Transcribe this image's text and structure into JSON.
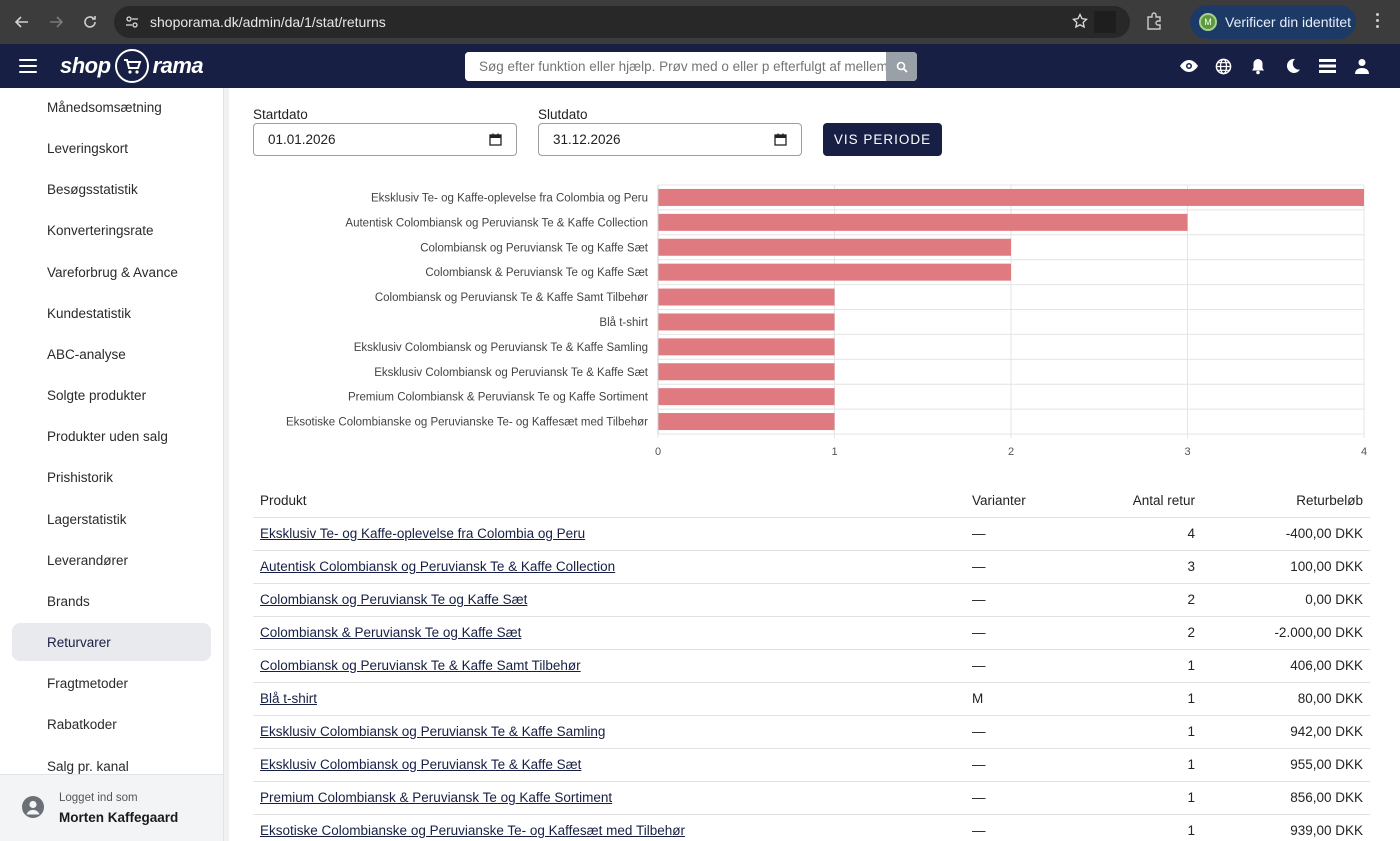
{
  "browser": {
    "url": "shoporama.dk/admin/da/1/stat/returns",
    "verify_label": "Verificer din identitet",
    "profile_initial": "M"
  },
  "header": {
    "logo_left": "shop",
    "logo_right": "rama",
    "search_placeholder": "Søg efter funktion eller hjælp. Prøv med o eller p efterfulgt af mellemrum",
    "icons": [
      "eye-icon",
      "globe-icon",
      "bell-icon",
      "moon-icon",
      "stack-icon",
      "user-icon"
    ]
  },
  "sidebar": {
    "items": [
      {
        "label": "Månedsomsætning"
      },
      {
        "label": "Leveringskort"
      },
      {
        "label": "Besøgsstatistik"
      },
      {
        "label": "Konverteringsrate"
      },
      {
        "label": "Vareforbrug & Avance"
      },
      {
        "label": "Kundestatistik"
      },
      {
        "label": "ABC-analyse"
      },
      {
        "label": "Solgte produkter"
      },
      {
        "label": "Produkter uden salg"
      },
      {
        "label": "Prishistorik"
      },
      {
        "label": "Lagerstatistik"
      },
      {
        "label": "Leverandører"
      },
      {
        "label": "Brands"
      },
      {
        "label": "Returvarer",
        "active": true
      },
      {
        "label": "Fragtmetoder"
      },
      {
        "label": "Rabatkoder"
      },
      {
        "label": "Salg pr. kanal"
      }
    ],
    "footer": {
      "logged_in_label": "Logget ind som",
      "user_name": "Morten Kaffegaard"
    }
  },
  "filters": {
    "start_label": "Startdato",
    "start_value": "01.01.2026",
    "end_label": "Slutdato",
    "end_value": "31.12.2026",
    "button_label": "VIS PERIODE"
  },
  "chart_data": {
    "type": "bar",
    "orientation": "horizontal",
    "categories": [
      "Eksklusiv Te- og Kaffe-oplevelse fra Colombia og Peru",
      "Autentisk Colombiansk og Peruviansk Te & Kaffe Collection",
      "Colombiansk og Peruviansk Te og Kaffe Sæt",
      "Colombiansk & Peruviansk Te og Kaffe Sæt",
      "Colombiansk og Peruviansk Te & Kaffe Samt Tilbehør",
      "Blå t-shirt",
      "Eksklusiv Colombiansk og Peruviansk Te & Kaffe Samling",
      "Eksklusiv Colombiansk og Peruviansk Te & Kaffe Sæt",
      "Premium Colombiansk & Peruviansk Te og Kaffe Sortiment",
      "Eksotiske Colombianske og Peruvianske Te- og Kaffesæt med Tilbehør"
    ],
    "values": [
      4,
      3,
      2,
      2,
      1,
      1,
      1,
      1,
      1,
      1
    ],
    "xlim": [
      0,
      4
    ],
    "xticks": [
      "0",
      "1",
      "2",
      "3",
      "4"
    ],
    "grid": true,
    "bar_color": "#de7a80"
  },
  "table": {
    "headers": {
      "product": "Produkt",
      "variants": "Varianter",
      "count": "Antal retur",
      "amount": "Returbeløb"
    },
    "rows": [
      {
        "product": "Eksklusiv Te- og Kaffe-oplevelse fra Colombia og Peru",
        "variants": "—",
        "count": "4",
        "amount": "-400,00 DKK"
      },
      {
        "product": "Autentisk Colombiansk og Peruviansk Te & Kaffe Collection",
        "variants": "—",
        "count": "3",
        "amount": "100,00 DKK"
      },
      {
        "product": "Colombiansk og Peruviansk Te og Kaffe Sæt",
        "variants": "—",
        "count": "2",
        "amount": "0,00 DKK"
      },
      {
        "product": "Colombiansk & Peruviansk Te og Kaffe Sæt",
        "variants": "—",
        "count": "2",
        "amount": "-2.000,00 DKK"
      },
      {
        "product": "Colombiansk og Peruviansk Te & Kaffe Samt Tilbehør",
        "variants": "—",
        "count": "1",
        "amount": "406,00 DKK"
      },
      {
        "product": "Blå t-shirt",
        "variants": "M",
        "count": "1",
        "amount": "80,00 DKK"
      },
      {
        "product": "Eksklusiv Colombiansk og Peruviansk Te & Kaffe Samling",
        "variants": "—",
        "count": "1",
        "amount": "942,00 DKK"
      },
      {
        "product": "Eksklusiv Colombiansk og Peruviansk Te & Kaffe Sæt",
        "variants": "—",
        "count": "1",
        "amount": "955,00 DKK"
      },
      {
        "product": "Premium Colombiansk & Peruviansk Te og Kaffe Sortiment",
        "variants": "—",
        "count": "1",
        "amount": "856,00 DKK"
      },
      {
        "product": "Eksotiske Colombianske og Peruvianske Te- og Kaffesæt med Tilbehør",
        "variants": "—",
        "count": "1",
        "amount": "939,00 DKK"
      }
    ]
  }
}
